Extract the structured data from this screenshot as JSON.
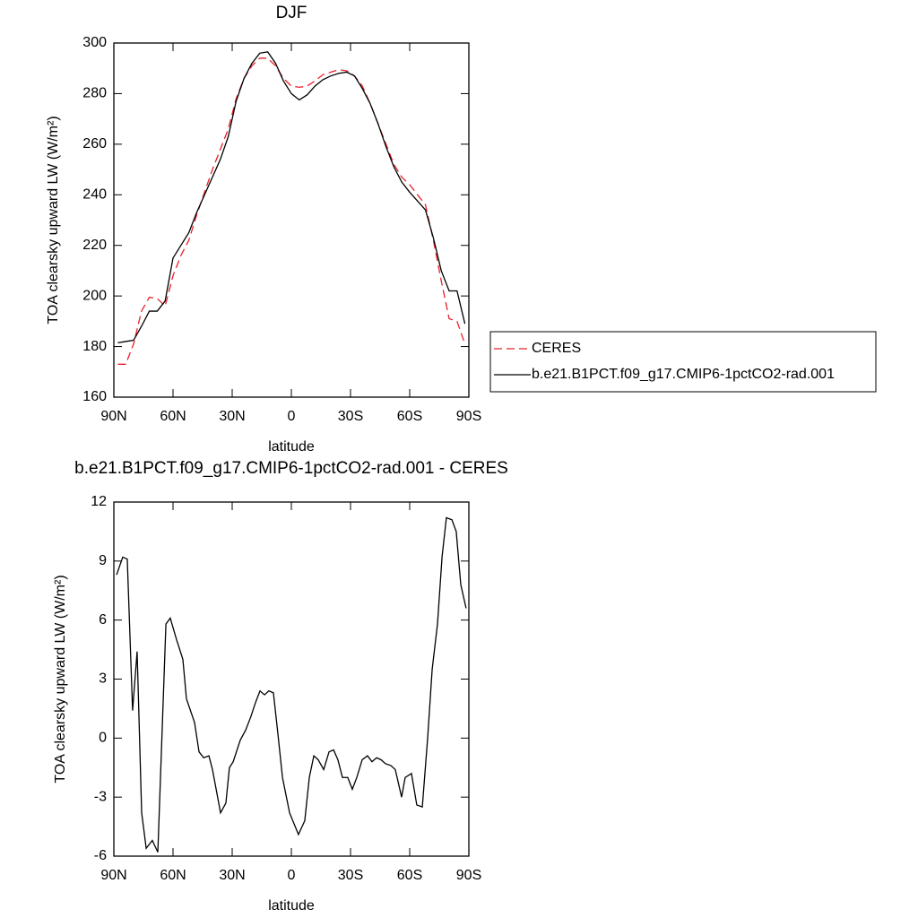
{
  "chart_data": [
    {
      "type": "line",
      "title": "DJF",
      "x_label": "latitude",
      "y_label": "TOA clearsky upward LW (W/m²)",
      "x": [
        88,
        84,
        80,
        76,
        72,
        68,
        64,
        60,
        56,
        52,
        48,
        44,
        40,
        36,
        32,
        28,
        24,
        20,
        16,
        12,
        8,
        4,
        0,
        -4,
        -8,
        -12,
        -16,
        -20,
        -24,
        -28,
        -32,
        -36,
        -40,
        -44,
        -48,
        -52,
        -56,
        -60,
        -64,
        -68,
        -72,
        -76,
        -80,
        -84,
        -88
      ],
      "series": [
        {
          "name": "CERES",
          "color": "#e8202a",
          "line_style": "dashed",
          "values": [
            173,
            173,
            181,
            194,
            199.5,
            199,
            196,
            208,
            216,
            222,
            232,
            241,
            250,
            258,
            266,
            278,
            286,
            291,
            294,
            294,
            291,
            286,
            283,
            282.5,
            283,
            285,
            287.5,
            288.5,
            289.5,
            289,
            287,
            283,
            276,
            268,
            260,
            252,
            247,
            244,
            240,
            236,
            222,
            206,
            191,
            190,
            181
          ]
        },
        {
          "name": "b.e21.B1PCT.f09_g17.CMIP6-1pctCO2-rad.001",
          "color": "#000000",
          "line_style": "solid",
          "values": [
            181.5,
            182,
            182.5,
            188,
            194,
            194,
            198,
            215,
            220,
            225,
            233,
            240,
            247,
            254,
            263,
            277,
            286,
            292,
            296,
            296.5,
            292,
            285,
            280,
            277.5,
            279.5,
            283,
            285.5,
            287,
            288,
            288.5,
            287,
            282,
            276,
            268,
            259,
            251,
            245,
            241,
            237.5,
            234,
            223,
            210,
            202,
            202,
            189
          ]
        }
      ],
      "xlim": [
        90,
        -90
      ],
      "xticks": [
        {
          "value": 90,
          "label": "90N"
        },
        {
          "value": 60,
          "label": "60N"
        },
        {
          "value": 30,
          "label": "30N"
        },
        0,
        {
          "value": -30,
          "label": "30S"
        },
        {
          "value": -60,
          "label": "60S"
        },
        {
          "value": -90,
          "label": "90S"
        }
      ],
      "ylim": [
        160,
        300
      ],
      "yticks": [
        160,
        180,
        200,
        220,
        240,
        260,
        280,
        300
      ],
      "legend": "right"
    },
    {
      "type": "line",
      "title": "b.e21.B1PCT.f09_g17.CMIP6-1pctCO2-rad.001 - CERES",
      "x_label": "latitude",
      "y_label": "TOA clearsky upward LW (W/m²)",
      "x": [
        88.6,
        85.5,
        83.2,
        80.5,
        78.2,
        75.9,
        73.6,
        70.5,
        67.7,
        63.6,
        61.4,
        58.2,
        55,
        53.2,
        49.1,
        46.8,
        44.5,
        41.8,
        40,
        35.9,
        33.2,
        31.4,
        29.5,
        25.9,
        23.2,
        20.5,
        18.2,
        15.9,
        13.6,
        11.4,
        9.1,
        6.8,
        4.5,
        0.9,
        -3.6,
        -6.8,
        -9.1,
        -11.4,
        -13.6,
        -16.4,
        -19.1,
        -21.4,
        -23.6,
        -25.9,
        -28.6,
        -30.9,
        -33.2,
        -35.9,
        -38.6,
        -40.9,
        -43.2,
        -45.5,
        -47.7,
        -50.5,
        -52.7,
        -55.9,
        -57.7,
        -60.9,
        -63.6,
        -66.4,
        -69.1,
        -71.4,
        -74.1,
        -76.4,
        -78.6,
        -81.4,
        -83.6,
        -85.9,
        -88.6
      ],
      "series": [
        {
          "color": "#000000",
          "line_style": "solid",
          "values": [
            8.3,
            9.2,
            9.1,
            1.4,
            4.4,
            -3.8,
            -5.6,
            -5.2,
            -5.8,
            5.8,
            6.1,
            5,
            4,
            2,
            0.8,
            -0.7,
            -1,
            -0.9,
            -1.6,
            -3.8,
            -3.3,
            -1.5,
            -1.2,
            -0.1,
            0.4,
            1.1,
            1.8,
            2.4,
            2.2,
            2.4,
            2.3,
            0.2,
            -2,
            -3.8,
            -4.9,
            -4.2,
            -2,
            -0.9,
            -1.1,
            -1.6,
            -0.7,
            -0.6,
            -1.1,
            -2,
            -2,
            -2.6,
            -2,
            -1.1,
            -0.9,
            -1.2,
            -1,
            -1.1,
            -1.3,
            -1.4,
            -1.6,
            -3,
            -2,
            -1.8,
            -3.4,
            -3.5,
            0,
            3.5,
            5.8,
            9.2,
            11.2,
            11.1,
            10.5,
            7.8,
            6.6
          ]
        }
      ],
      "xlim": [
        90,
        -90
      ],
      "xticks": [
        {
          "value": 90,
          "label": "90N"
        },
        {
          "value": 60,
          "label": "60N"
        },
        {
          "value": 30,
          "label": "30N"
        },
        0,
        {
          "value": -30,
          "label": "30S"
        },
        {
          "value": -60,
          "label": "60S"
        },
        {
          "value": -90,
          "label": "90S"
        }
      ],
      "ylim": [
        -6,
        12
      ],
      "yticks": [
        -6,
        -3,
        0,
        3,
        6,
        9,
        12
      ]
    }
  ]
}
